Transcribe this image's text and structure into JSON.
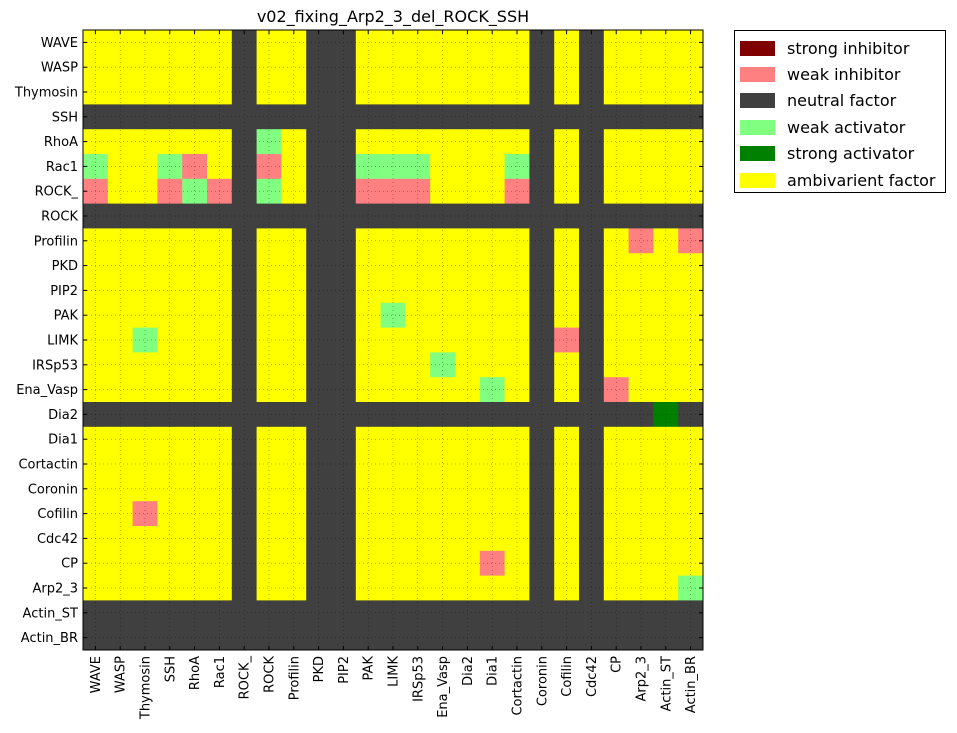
{
  "chart_data": {
    "type": "heatmap",
    "title": "v02_fixing_Arp2_3_del_ROCK_SSH",
    "columns": [
      "WAVE",
      "WASP",
      "Thymosin",
      "SSH",
      "RhoA",
      "Rac1",
      "ROCK_",
      "ROCK",
      "Profilin",
      "PKD",
      "PIP2",
      "PAK",
      "LIMK",
      "IRSp53",
      "Ena_Vasp",
      "Dia2",
      "Dia1",
      "Cortactin",
      "Coronin",
      "Cofilin",
      "Cdc42",
      "CP",
      "Arp2_3",
      "Actin_ST",
      "Actin_BR"
    ],
    "rows": [
      "WAVE",
      "WASP",
      "Thymosin",
      "SSH",
      "RhoA",
      "Rac1",
      "ROCK_",
      "ROCK",
      "Profilin",
      "PKD",
      "PIP2",
      "PAK",
      "LIMK",
      "IRSp53",
      "Ena_Vasp",
      "Dia2",
      "Dia1",
      "Cortactin",
      "Coronin",
      "Cofilin",
      "Cdc42",
      "CP",
      "Arp2_3",
      "Actin_ST",
      "Actin_BR"
    ],
    "neutral_rows": [
      "SSH",
      "ROCK",
      "Dia2",
      "Actin_ST",
      "Actin_BR"
    ],
    "neutral_columns": [
      "ROCK_",
      "PKD",
      "PIP2",
      "Coronin",
      "Cdc42"
    ],
    "default_category": "ambivarient factor",
    "exceptions": [
      {
        "row": "RhoA",
        "col": "ROCK",
        "category": "weak activator"
      },
      {
        "row": "Rac1",
        "col": "WAVE",
        "category": "weak activator"
      },
      {
        "row": "Rac1",
        "col": "SSH",
        "category": "weak activator"
      },
      {
        "row": "Rac1",
        "col": "RhoA",
        "category": "weak inhibitor"
      },
      {
        "row": "Rac1",
        "col": "ROCK",
        "category": "weak inhibitor"
      },
      {
        "row": "Rac1",
        "col": "PAK",
        "category": "weak activator"
      },
      {
        "row": "Rac1",
        "col": "LIMK",
        "category": "weak activator"
      },
      {
        "row": "Rac1",
        "col": "IRSp53",
        "category": "weak activator"
      },
      {
        "row": "Rac1",
        "col": "Cortactin",
        "category": "weak activator"
      },
      {
        "row": "ROCK_",
        "col": "WAVE",
        "category": "weak inhibitor"
      },
      {
        "row": "ROCK_",
        "col": "SSH",
        "category": "weak inhibitor"
      },
      {
        "row": "ROCK_",
        "col": "RhoA",
        "category": "weak activator"
      },
      {
        "row": "ROCK_",
        "col": "Rac1",
        "category": "weak inhibitor"
      },
      {
        "row": "ROCK_",
        "col": "ROCK",
        "category": "weak activator"
      },
      {
        "row": "ROCK_",
        "col": "PAK",
        "category": "weak inhibitor"
      },
      {
        "row": "ROCK_",
        "col": "LIMK",
        "category": "weak inhibitor"
      },
      {
        "row": "ROCK_",
        "col": "IRSp53",
        "category": "weak inhibitor"
      },
      {
        "row": "ROCK_",
        "col": "Cortactin",
        "category": "weak inhibitor"
      },
      {
        "row": "Profilin",
        "col": "Arp2_3",
        "category": "weak inhibitor"
      },
      {
        "row": "Profilin",
        "col": "Actin_BR",
        "category": "weak inhibitor"
      },
      {
        "row": "PAK",
        "col": "LIMK",
        "category": "weak activator"
      },
      {
        "row": "LIMK",
        "col": "Thymosin",
        "category": "weak activator"
      },
      {
        "row": "LIMK",
        "col": "Cofilin",
        "category": "weak inhibitor"
      },
      {
        "row": "IRSp53",
        "col": "Ena_Vasp",
        "category": "weak activator"
      },
      {
        "row": "Ena_Vasp",
        "col": "Dia1",
        "category": "weak activator"
      },
      {
        "row": "Ena_Vasp",
        "col": "CP",
        "category": "weak inhibitor"
      },
      {
        "row": "Dia2",
        "col": "Actin_ST",
        "category": "strong activator"
      },
      {
        "row": "Cofilin",
        "col": "Thymosin",
        "category": "weak inhibitor"
      },
      {
        "row": "CP",
        "col": "Dia1",
        "category": "weak inhibitor"
      },
      {
        "row": "Arp2_3",
        "col": "Actin_BR",
        "category": "weak activator"
      }
    ],
    "grid": true,
    "legend_position": "outside-top-right",
    "legend": [
      {
        "label": "strong inhibitor",
        "color": "#800000"
      },
      {
        "label": "weak inhibitor",
        "color": "#ff8080"
      },
      {
        "label": "neutral factor",
        "color": "#404040"
      },
      {
        "label": "weak activator",
        "color": "#80ff80"
      },
      {
        "label": "strong activator",
        "color": "#008000"
      },
      {
        "label": "ambivarient factor",
        "color": "#ffff00"
      }
    ]
  }
}
